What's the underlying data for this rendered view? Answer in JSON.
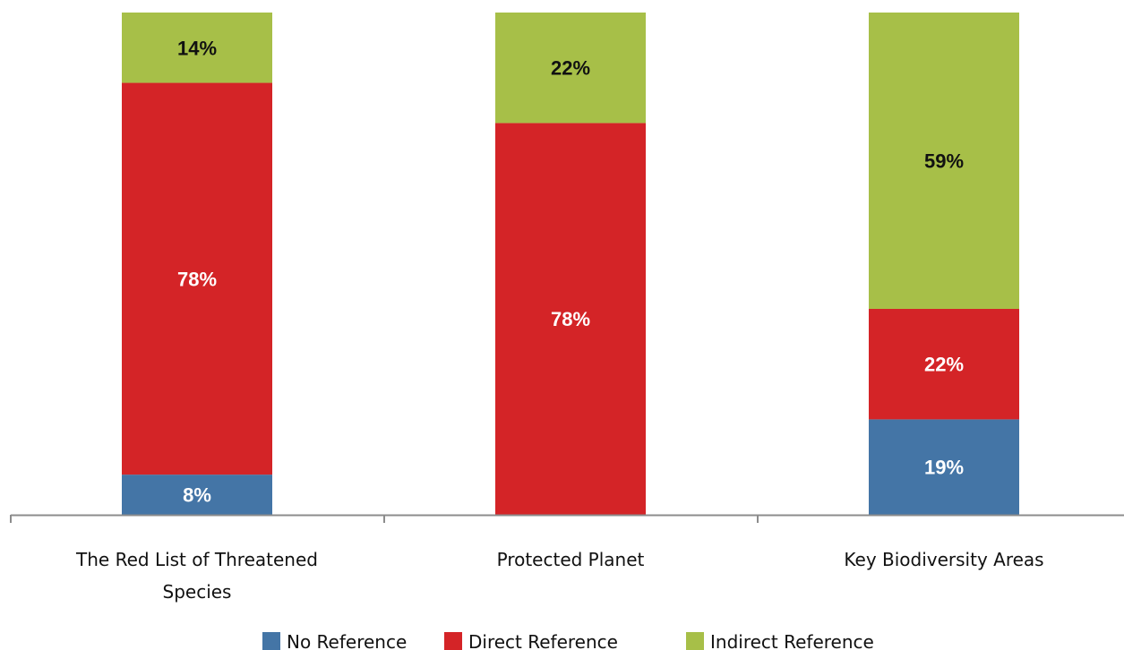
{
  "chart_data": {
    "type": "bar",
    "stacked": true,
    "categories": [
      [
        "The Red List of Threatened",
        "Species"
      ],
      [
        "Protected Planet"
      ],
      [
        "Key Biodiversity Areas"
      ]
    ],
    "series": [
      {
        "name": "No Reference",
        "color": "#4475a6",
        "values": [
          8,
          0,
          19
        ],
        "labels": [
          "8%",
          "",
          "19%"
        ],
        "label_color": "#ffffff"
      },
      {
        "name": "Direct Reference",
        "color": "#d42427",
        "values": [
          78,
          78,
          22
        ],
        "labels": [
          "78%",
          "78%",
          "22%"
        ],
        "label_color": "#ffffff"
      },
      {
        "name": "Indirect Reference",
        "color": "#a7bf48",
        "values": [
          14,
          22,
          59
        ],
        "labels": [
          "14%",
          "22%",
          "59%"
        ],
        "label_color": "#111111"
      }
    ],
    "legend_position": "bottom",
    "axis_color": "#8c8c8c",
    "grid": false
  }
}
